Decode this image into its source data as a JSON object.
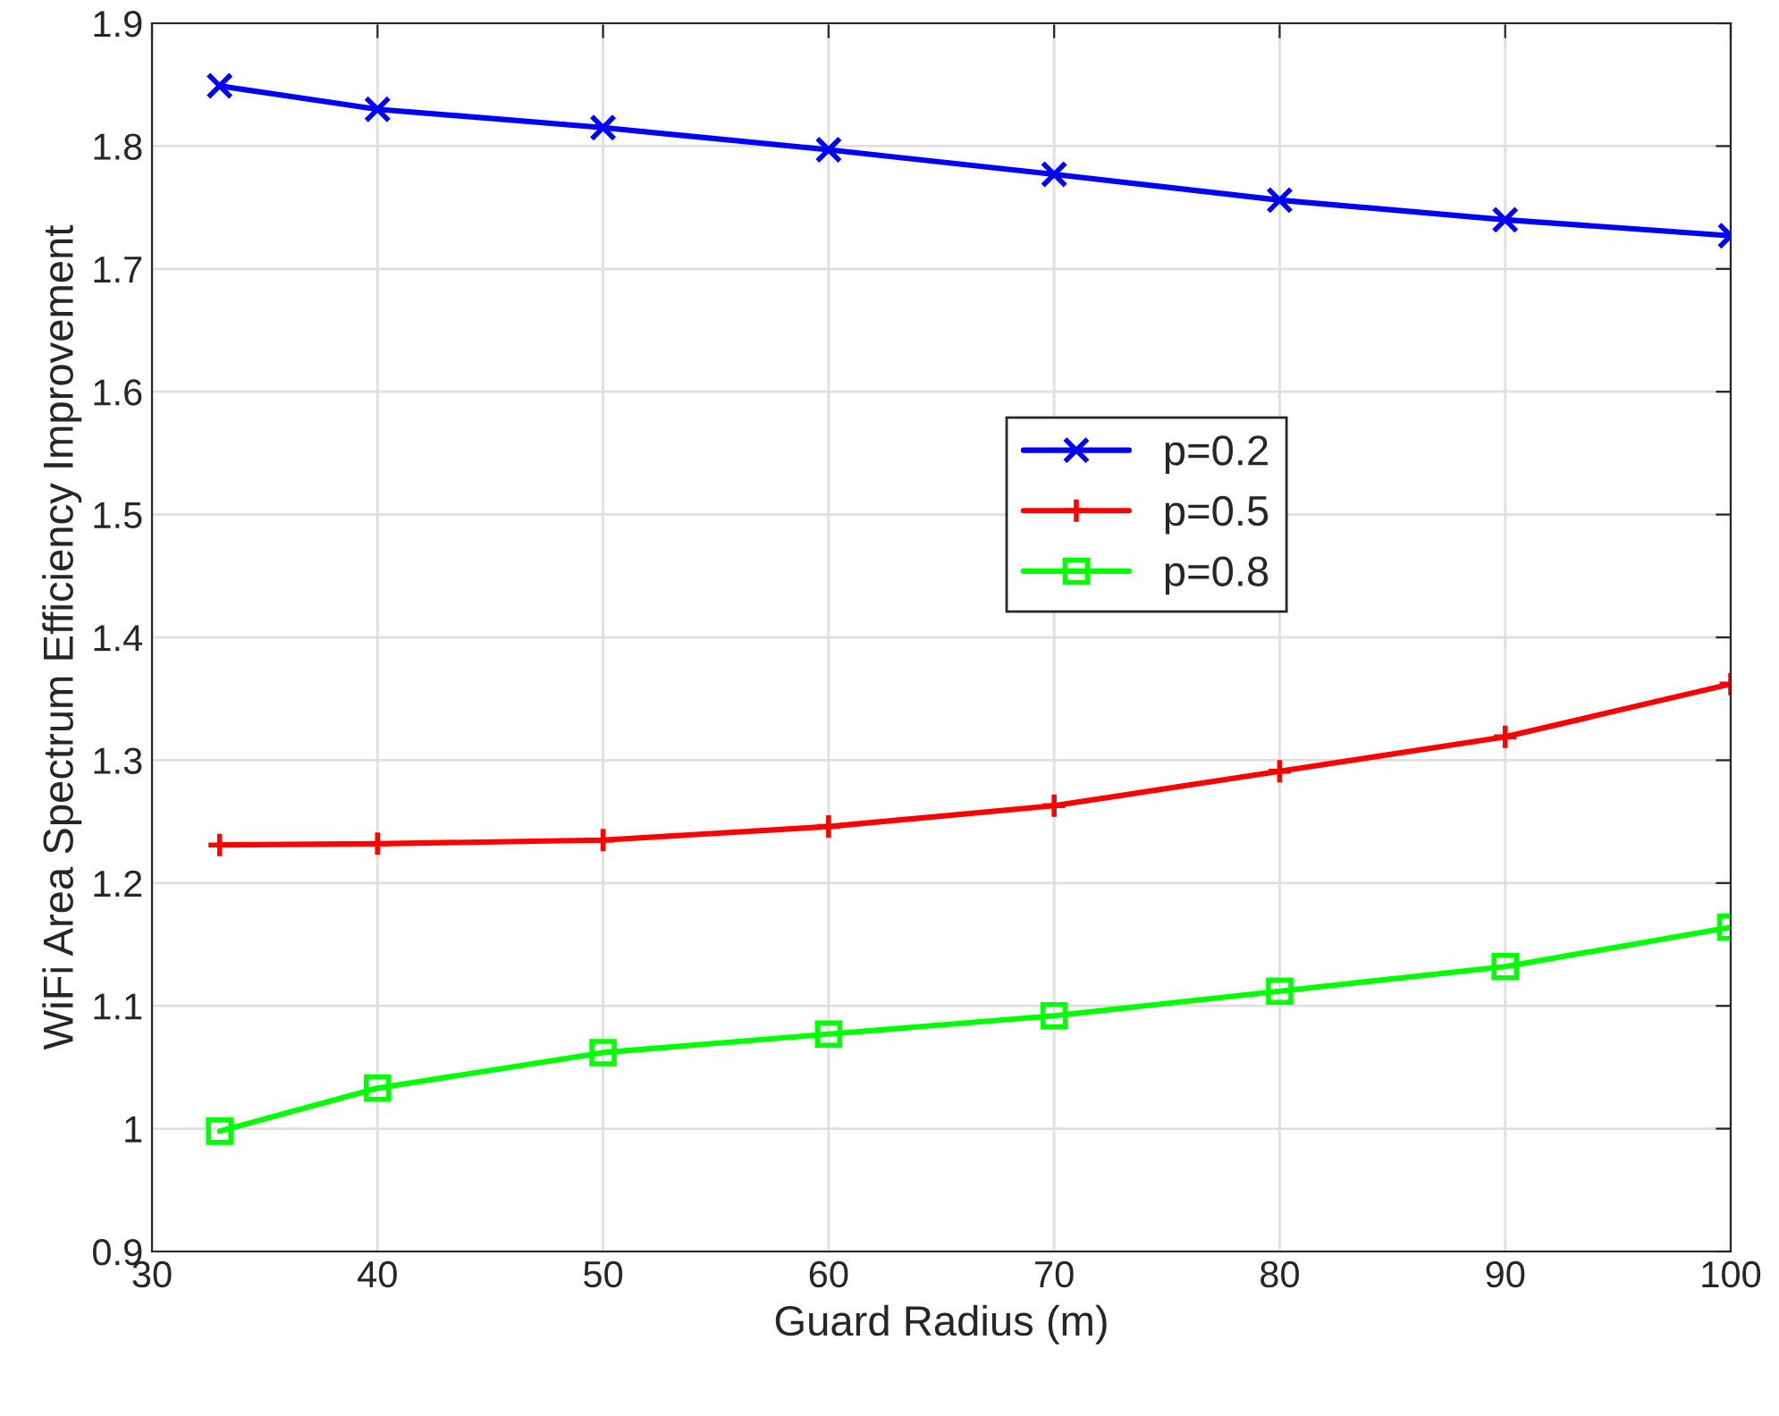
{
  "chart_data": {
    "type": "line",
    "xlabel": "Guard Radius (m)",
    "ylabel": "WiFi Area Spectrum Efficiency Improvement",
    "x": [
      33,
      40,
      50,
      60,
      70,
      80,
      90,
      100
    ],
    "series": [
      {
        "name": "p=0.2",
        "color": "#0000ff",
        "marker": "cross",
        "values": [
          1.849,
          1.83,
          1.815,
          1.797,
          1.777,
          1.756,
          1.74,
          1.727
        ]
      },
      {
        "name": "p=0.5",
        "color": "#ff0000",
        "marker": "plus",
        "values": [
          1.231,
          1.232,
          1.235,
          1.246,
          1.263,
          1.291,
          1.319,
          1.362
        ]
      },
      {
        "name": "p=0.8",
        "color": "#00ff00",
        "marker": "square",
        "values": [
          0.998,
          1.033,
          1.062,
          1.077,
          1.092,
          1.112,
          1.132,
          1.164
        ]
      }
    ],
    "xlim": [
      30,
      100
    ],
    "xticks": [
      30,
      40,
      50,
      60,
      70,
      80,
      90,
      100
    ],
    "ylim": [
      0.9,
      1.9
    ],
    "yticks": [
      0.9,
      1,
      1.1,
      1.2,
      1.3,
      1.4,
      1.5,
      1.6,
      1.7,
      1.8,
      1.9
    ],
    "grid": true,
    "legend": "center",
    "line_style": "solid"
  }
}
